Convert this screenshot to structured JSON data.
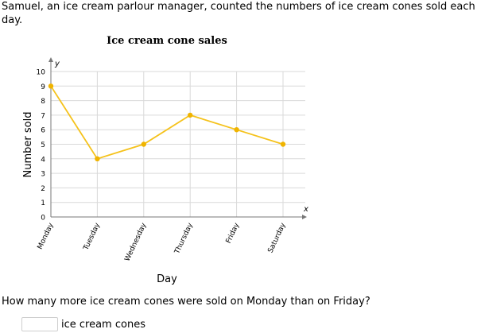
{
  "intro_text": "Samuel, an ice cream parlour manager, counted the numbers of ice cream cones sold each day.",
  "question": "How many more ice cream cones were sold on Monday than on Friday?",
  "answer": {
    "value": "",
    "unit": "ice cream cones"
  },
  "colors": {
    "line": "#f5c21b",
    "point": "#f0b400",
    "grid": "#d9d9d9",
    "axis": "#777777"
  },
  "chart_data": {
    "type": "line",
    "title": "Ice cream cone sales",
    "xlabel": "Day",
    "ylabel": "Number sold",
    "x_axis_symbol": "x",
    "y_axis_symbol": "y",
    "categories": [
      "Monday",
      "Tuesday",
      "Wednesday",
      "Thursday",
      "Friday",
      "Saturday"
    ],
    "values": [
      9,
      4,
      5,
      7,
      6,
      5
    ],
    "ylim": [
      0,
      10
    ],
    "yticks": [
      0,
      1,
      2,
      3,
      4,
      5,
      6,
      7,
      8,
      9,
      10
    ],
    "grid": true
  }
}
